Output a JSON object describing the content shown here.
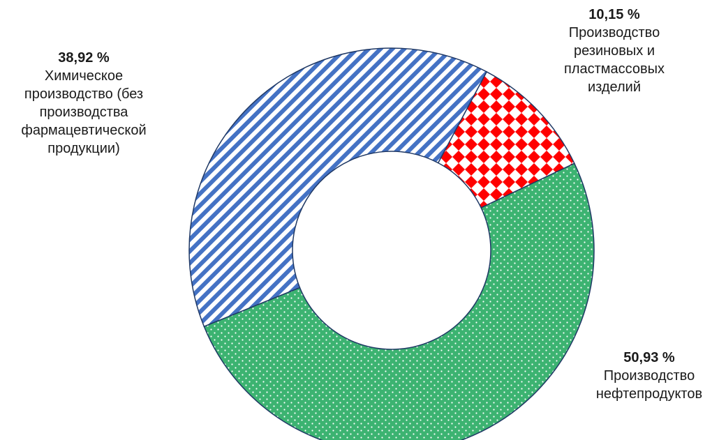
{
  "chart_data": {
    "type": "pie",
    "donut": true,
    "slices": [
      {
        "label": "Производство резиновых и пластмассовых изделий",
        "value": 10.15,
        "value_label": "10,15 %",
        "pattern": "red-diamonds"
      },
      {
        "label": "Производство нефтепродуктов",
        "value": 50.93,
        "value_label": "50,93 %",
        "pattern": "green-dots"
      },
      {
        "label": "Химическое производство (без производства фармацевтической продукции)",
        "value": 38.92,
        "value_label": "38,92 %",
        "pattern": "blue-diagonal-stripes"
      }
    ],
    "colors": {
      "red": "#ff0000",
      "green": "#3cb371",
      "blue": "#4472c4",
      "outline": "#1f3864"
    }
  }
}
